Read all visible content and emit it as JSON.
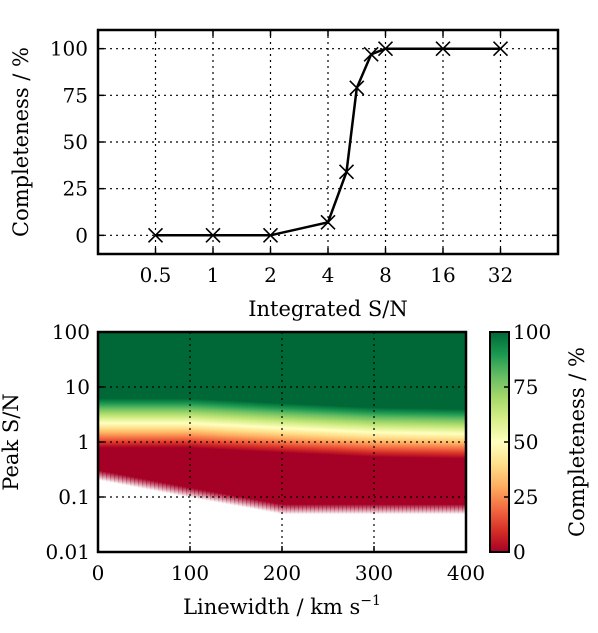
{
  "chart_data": [
    {
      "type": "line",
      "xlabel": "Integrated S/N",
      "ylabel": "Completeness / %",
      "x_scale": "log2",
      "xlim": [
        0.25,
        64
      ],
      "ylim": [
        -10,
        110
      ],
      "x_ticks": [
        0.5,
        1,
        2,
        4,
        8,
        16,
        32
      ],
      "x_tick_labels": [
        "0.5",
        "1",
        "2",
        "4",
        "8",
        "16",
        "32"
      ],
      "y_ticks": [
        0,
        25,
        50,
        75,
        100
      ],
      "y_tick_labels": [
        "0",
        "25",
        "50",
        "75",
        "100"
      ],
      "grid": true,
      "marker": "x",
      "series": [
        {
          "x": [
            0.5,
            1,
            2,
            4,
            5,
            5.66,
            6.73,
            8,
            16,
            32
          ],
          "y": [
            0,
            0,
            0,
            7,
            34,
            79,
            97,
            100,
            100,
            100
          ]
        }
      ]
    },
    {
      "type": "heatmap",
      "xlabel": "Linewidth / km s⁻¹",
      "ylabel": "Peak S/N",
      "colorbar_label": "Completeness / %",
      "xlim": [
        0,
        400
      ],
      "ylim": [
        0.01,
        100
      ],
      "y_scale": "log",
      "x_ticks": [
        0,
        100,
        200,
        300,
        400
      ],
      "x_tick_labels": [
        "0",
        "100",
        "200",
        "300",
        "400"
      ],
      "y_ticks": [
        0.01,
        0.1,
        1,
        10,
        100
      ],
      "y_tick_labels": [
        "0.01",
        "0.1",
        "1",
        "10",
        "100"
      ],
      "colorbar_ticks": [
        0,
        25,
        50,
        75,
        100
      ],
      "colorbar_tick_labels": [
        "0",
        "25",
        "50",
        "75",
        "100"
      ],
      "colormap": [
        "#a50026",
        "#d73027",
        "#f46d43",
        "#fdae61",
        "#fee08b",
        "#ffffbf",
        "#d9ef8b",
        "#a6d96a",
        "#66bd63",
        "#1a9850",
        "#006837"
      ],
      "grid": true,
      "linewidths": [
        0,
        100,
        200,
        300,
        400
      ],
      "completeness_50_peak_sn": [
        2.2,
        2.2,
        1.8,
        1.5,
        1.4
      ],
      "detection_floor_peak_sn": [
        0.25,
        0.12,
        0.06,
        0.06,
        0.06
      ]
    }
  ]
}
